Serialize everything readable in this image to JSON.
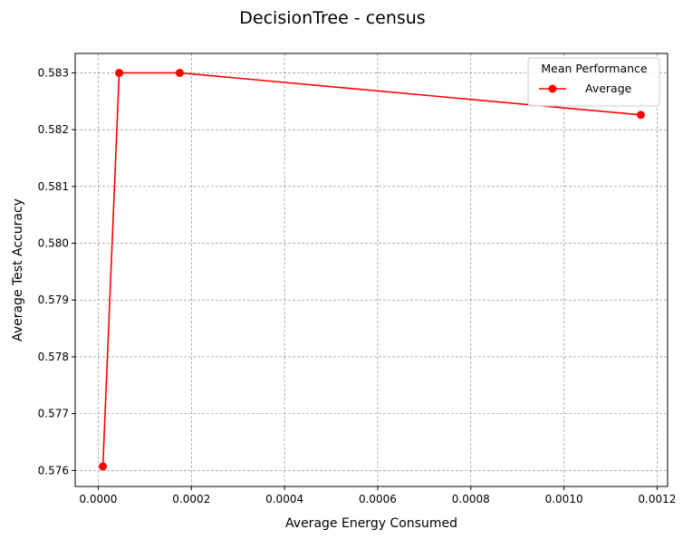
{
  "chart_data": {
    "type": "line",
    "title": "DecisionTree - census",
    "xlabel": "Average Energy Consumed",
    "ylabel": "Average Test Accuracy",
    "xlim": [
      -4.95e-05,
      0.0012225
    ],
    "ylim": [
      0.575718,
      0.583342
    ],
    "xticks": [
      0.0,
      0.0002,
      0.0004,
      0.0006,
      0.0008,
      0.001,
      0.0012
    ],
    "xtick_labels": [
      "0.0000",
      "0.0002",
      "0.0004",
      "0.0006",
      "0.0008",
      "0.0010",
      "0.0012"
    ],
    "yticks": [
      0.576,
      0.577,
      0.578,
      0.579,
      0.58,
      0.581,
      0.582,
      0.583
    ],
    "ytick_labels": [
      "0.576",
      "0.577",
      "0.578",
      "0.579",
      "0.580",
      "0.581",
      "0.582",
      "0.583"
    ],
    "grid": true,
    "legend": {
      "title": "Mean Performance",
      "placement": "top-right"
    },
    "series": [
      {
        "name": "Average",
        "color": "#ff0000",
        "marker": "circle",
        "x": [
          1e-05,
          4.5e-05,
          0.000175,
          0.001165
        ],
        "y": [
          0.57607,
          0.583,
          0.583,
          0.58226
        ]
      }
    ]
  }
}
